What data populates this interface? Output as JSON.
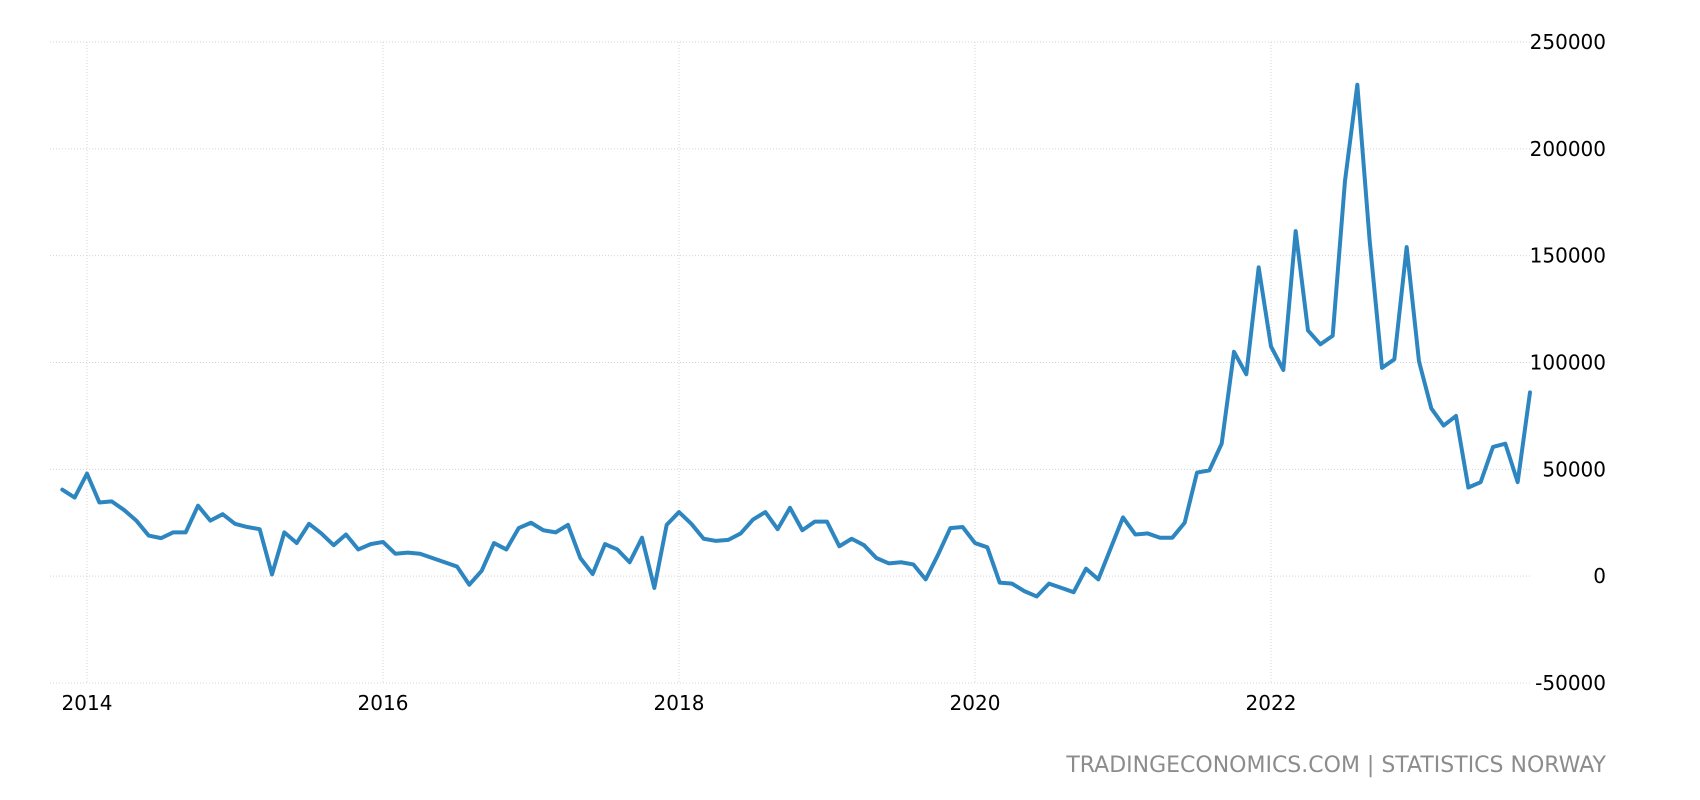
{
  "chart_data": {
    "type": "line",
    "title": "",
    "xlabel": "",
    "ylabel": "",
    "x_tick_labels": [
      "2014",
      "2016",
      "2018",
      "2020",
      "2022"
    ],
    "y_tick_labels": [
      "250000",
      "200000",
      "150000",
      "100000",
      "50000",
      "0",
      "-50000"
    ],
    "ylim": [
      -50000,
      250000
    ],
    "xlim": [
      "2013-10",
      "2023-10"
    ],
    "grid": true,
    "legend": "none",
    "series": [
      {
        "color": "#2e86c1",
        "x": [
          "2013-11",
          "2013-12",
          "2014-01",
          "2014-02",
          "2014-03",
          "2014-04",
          "2014-05",
          "2014-06",
          "2014-07",
          "2014-08",
          "2014-09",
          "2014-10",
          "2014-11",
          "2014-12",
          "2015-01",
          "2015-02",
          "2015-03",
          "2015-04",
          "2015-05",
          "2015-06",
          "2015-07",
          "2015-08",
          "2015-09",
          "2015-10",
          "2015-11",
          "2015-12",
          "2016-01",
          "2016-02",
          "2016-03",
          "2016-04",
          "2016-05",
          "2016-06",
          "2016-07",
          "2016-08",
          "2016-09",
          "2016-10",
          "2016-11",
          "2016-12",
          "2017-01",
          "2017-02",
          "2017-03",
          "2017-04",
          "2017-05",
          "2017-06",
          "2017-07",
          "2017-08",
          "2017-09",
          "2017-10",
          "2017-11",
          "2017-12",
          "2018-01",
          "2018-02",
          "2018-03",
          "2018-04",
          "2018-05",
          "2018-06",
          "2018-07",
          "2018-08",
          "2018-09",
          "2018-10",
          "2018-11",
          "2018-12",
          "2019-01",
          "2019-02",
          "2019-03",
          "2019-04",
          "2019-05",
          "2019-06",
          "2019-07",
          "2019-08",
          "2019-09",
          "2019-10",
          "2019-11",
          "2019-12",
          "2020-01",
          "2020-02",
          "2020-03",
          "2020-04",
          "2020-05",
          "2020-06",
          "2020-07",
          "2020-08",
          "2020-09",
          "2020-10",
          "2020-11",
          "2020-12",
          "2021-01",
          "2021-02",
          "2021-03",
          "2021-04",
          "2021-05",
          "2021-06",
          "2021-07",
          "2021-08",
          "2021-09",
          "2021-10",
          "2021-11",
          "2021-12",
          "2022-01",
          "2022-02",
          "2022-03",
          "2022-04",
          "2022-05",
          "2022-06",
          "2022-07",
          "2022-08",
          "2022-09",
          "2022-10",
          "2022-11",
          "2022-12",
          "2023-01",
          "2023-02",
          "2023-03",
          "2023-04",
          "2023-05",
          "2023-06",
          "2023-07",
          "2023-08",
          "2023-09",
          "2023-10"
        ],
        "values": [
          40500,
          36800,
          48000,
          34500,
          35000,
          31000,
          26000,
          19000,
          17800,
          20500,
          20500,
          33000,
          26000,
          29000,
          24500,
          23000,
          22000,
          800,
          20500,
          15500,
          24500,
          20000,
          14500,
          19500,
          12500,
          15000,
          16000,
          10500,
          11000,
          10500,
          8500,
          6500,
          4500,
          -4000,
          2500,
          15500,
          12500,
          22500,
          25000,
          21500,
          20500,
          24000,
          8500,
          1000,
          15000,
          12500,
          6500,
          18000,
          -5500,
          24000,
          30000,
          24500,
          17500,
          16500,
          17000,
          20000,
          26500,
          30000,
          22000,
          32000,
          21500,
          25500,
          25500,
          14000,
          17500,
          14500,
          8500,
          6000,
          6500,
          5500,
          -1500,
          10000,
          22500,
          23000,
          15500,
          13500,
          -3000,
          -3500,
          -7000,
          -9500,
          -3500,
          -5500,
          -7500,
          3500,
          -1500,
          13000,
          27500,
          19500,
          20000,
          18000,
          18000,
          25000,
          48500,
          49500,
          62000,
          105000,
          94500,
          144500,
          107500,
          96500,
          161500,
          115000,
          108500,
          112500,
          185000,
          230000,
          157000,
          97500,
          101500,
          154000,
          100500,
          78500,
          70500,
          75000,
          41500,
          44000,
          60500,
          62000,
          44000,
          86000
        ]
      }
    ]
  },
  "footer": {
    "source": "TRADINGECONOMICS.COM | STATISTICS NORWAY"
  }
}
